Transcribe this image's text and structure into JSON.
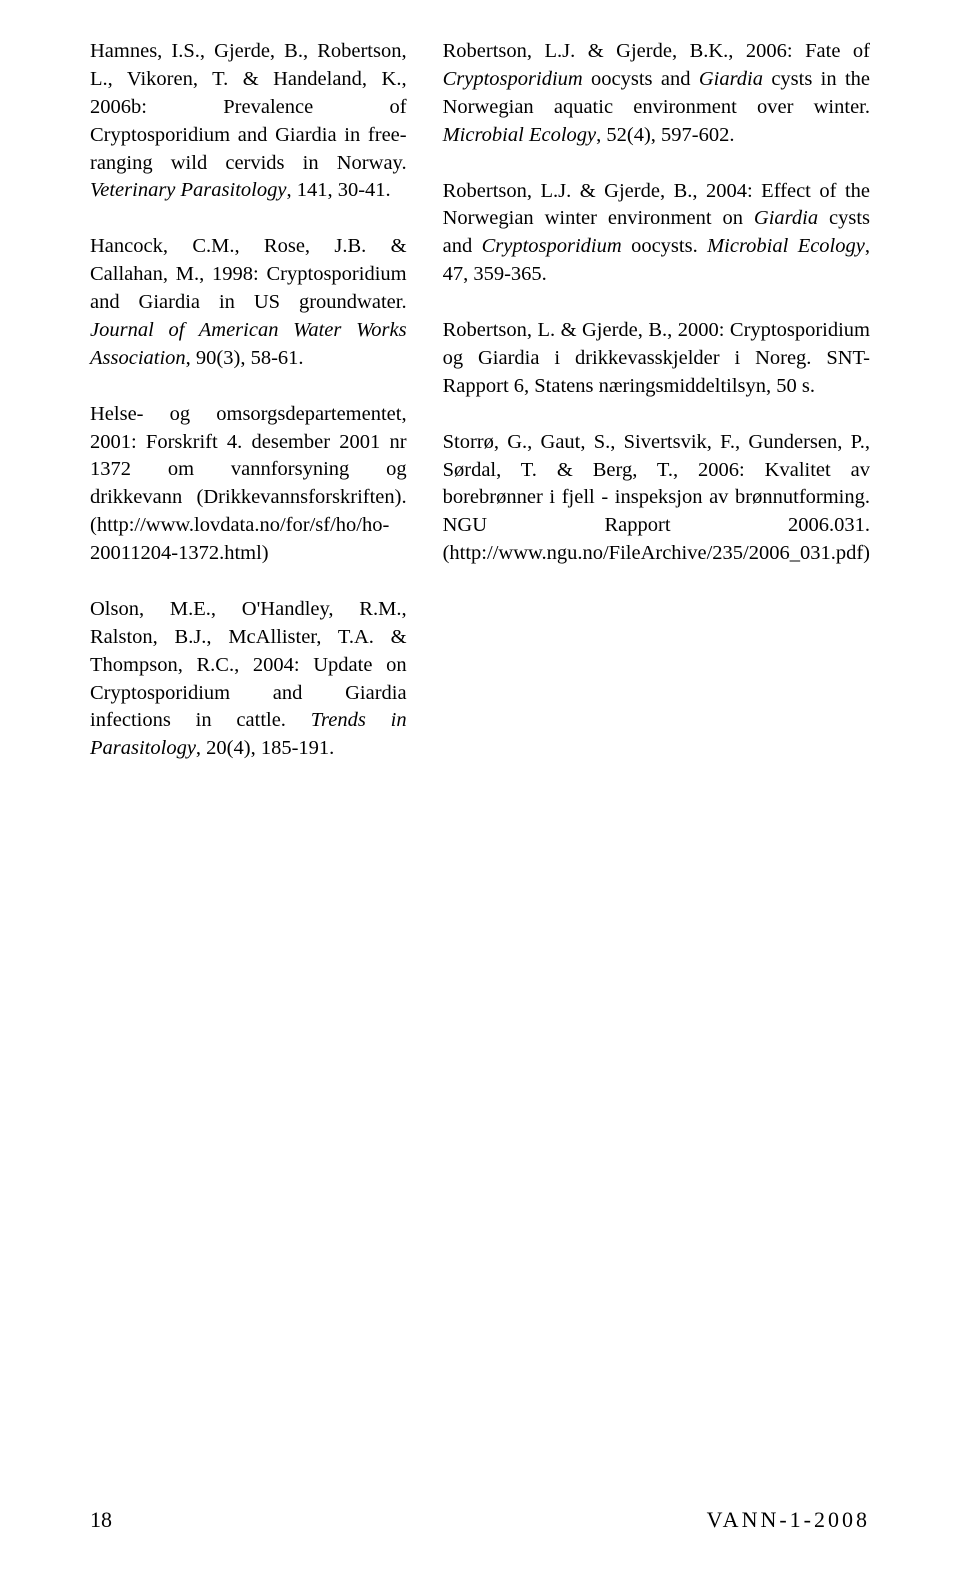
{
  "left_refs": [
    {
      "html": "Hamnes, I.S., Gjerde, B., Robertson, L., Vikoren, T. &amp; Handeland, K., 2006b: Prevalence of Cryptosporidium and Giardia in free-ranging wild cervids in Norway. <span class=\"italic\">Veterinary Parasitology</span>, 141, 30-41."
    },
    {
      "html": "Hancock, C.M., Rose, J.B. &amp; Callahan, M., 1998: Cryptosporidium and Giardia in US groundwater. <span class=\"italic\">Journal of American Water Works Association</span>, 90(3), 58-61."
    },
    {
      "html": "Helse- og omsorgsdepartementet, 2001: Forskrift 4. desember 2001 nr 1372 om vannforsyning og drikkevann (Drikkevannsforskriften). (http://www.lovdata.no/for/sf/ho/ho-20011204-1372.html)"
    },
    {
      "html": "Olson, M.E., O'Handley, R.M., Ralston, B.J., McAllister, T.A. &amp; Thompson, R.C., 2004: Update on Cryptosporidium and Giardia infections in cattle. <span class=\"italic\">Trends in Parasitology</span>, 20(4), 185-191."
    }
  ],
  "right_refs": [
    {
      "html": "Robertson, L.J. &amp; Gjerde, B.K., 2006: Fate of <span class=\"italic\">Cryptosporidium</span> oocysts and <span class=\"italic\">Giardia</span> cysts in the Norwegian aquatic environment over winter. <span class=\"italic\">Microbial Ecology</span>, 52(4), 597-602."
    },
    {
      "html": "Robertson, L.J. &amp; Gjerde, B., 2004: Effect of the Norwegian winter environment on <span class=\"italic\">Giardia</span> cysts and <span class=\"italic\">Cryptosporidium</span> oocysts. <span class=\"italic\">Microbial Ecology</span>, 47, 359-365."
    },
    {
      "html": "Robertson, L. &amp; Gjerde, B., 2000: Cryptosporidium og Giardia i drikkevasskjelder i Noreg. SNT-Rapport 6, Statens næringsmiddeltilsyn, 50 s."
    },
    {
      "html": "Storrø, G., Gaut, S., Sivertsvik, F., Gundersen, P., Sørdal, T. &amp; Berg, T., 2006: Kvalitet av borebrønner i fjell - inspeksjon av brønnutforming. NGU Rapport 2006.031. (http://www.ngu.no/FileArchive/235/2006_031.pdf)"
    }
  ],
  "footer": {
    "page": "18",
    "journal": "VANN-1-2008"
  }
}
